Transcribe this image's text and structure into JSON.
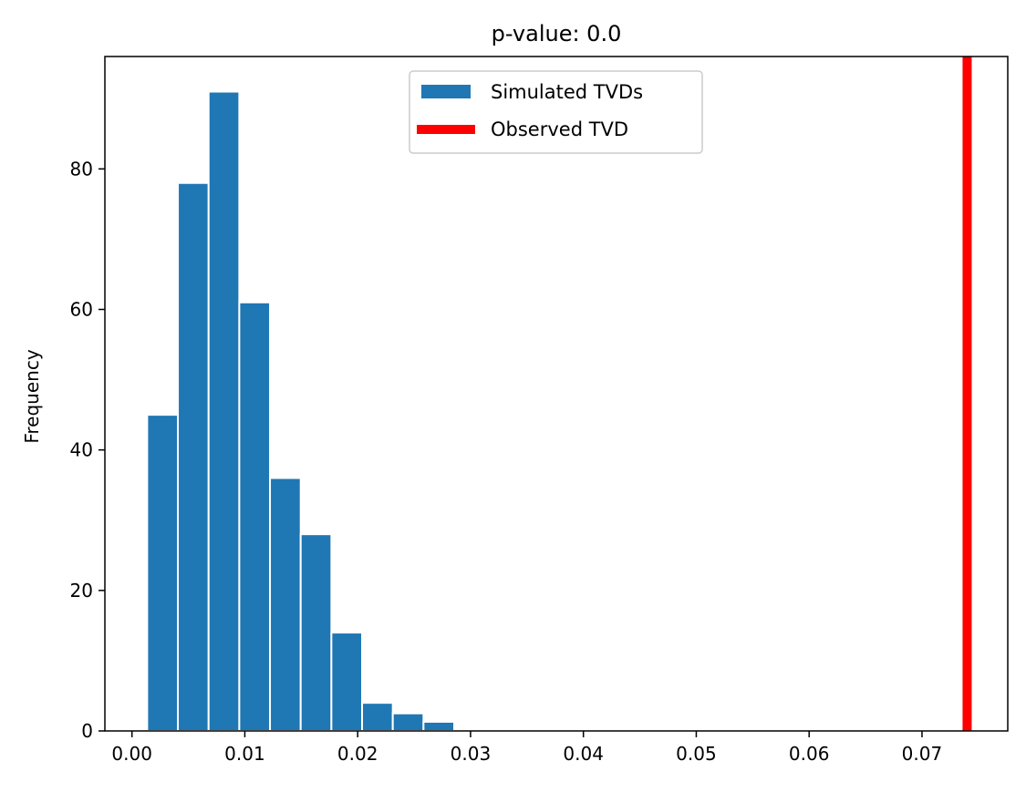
{
  "chart_data": {
    "type": "bar",
    "title": "p-value: 0.0",
    "xlabel": "",
    "ylabel": "Frequency",
    "xlim": [
      -0.0024,
      0.0776
    ],
    "ylim": [
      0,
      96
    ],
    "x_ticks": [
      0.0,
      0.01,
      0.02,
      0.03,
      0.04,
      0.05,
      0.06,
      0.07
    ],
    "x_tick_labels": [
      "0.00",
      "0.01",
      "0.02",
      "0.03",
      "0.04",
      "0.05",
      "0.06",
      "0.07"
    ],
    "y_ticks": [
      0,
      20,
      40,
      60,
      80
    ],
    "y_tick_labels": [
      "0",
      "20",
      "40",
      "60",
      "80"
    ],
    "grid": false,
    "legend_position": "top-center",
    "series": [
      {
        "name": "Simulated TVDs",
        "kind": "histogram",
        "color": "#1f77b4",
        "bin_edges": [
          0.00135,
          0.00407,
          0.00679,
          0.00951,
          0.01223,
          0.01495,
          0.01767,
          0.02039,
          0.02311,
          0.02583,
          0.02855
        ],
        "values": [
          45,
          78,
          91,
          61,
          36,
          28,
          14,
          4,
          2.5,
          1.3
        ]
      },
      {
        "name": "Observed TVD",
        "kind": "vline",
        "color": "#ff0000",
        "x": 0.074
      }
    ]
  }
}
